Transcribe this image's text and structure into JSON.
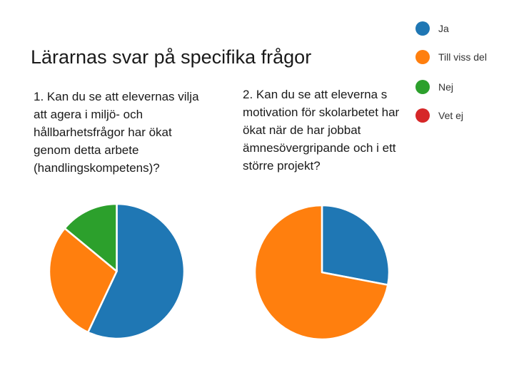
{
  "slide": {
    "title": "Lärarnas svar på specifika frågor",
    "question_1": "1. Kan du se att elevernas vilja att agera i miljö- och hållbarhetsfrågor har ökat genom detta arbete (handlingskompetens)?",
    "question_2": "2. Kan du se att eleverna s motivation för skolarbetet har ökat när de har jobbat ämnesövergripande och i ett större projekt?"
  },
  "legend": {
    "items": [
      {
        "label": "Ja",
        "color": "#1f77b4"
      },
      {
        "label": "Till viss del",
        "color": "#ff7f0e"
      },
      {
        "label": "Nej",
        "color": "#2ca02c"
      },
      {
        "label": "Vet ej",
        "color": "#d62728"
      }
    ]
  },
  "chart_data": [
    {
      "type": "pie",
      "categories": [
        "Ja",
        "Till viss del",
        "Nej",
        "Vet ej"
      ],
      "values": [
        57,
        29,
        14,
        0
      ],
      "colors": [
        "#1f77b4",
        "#ff7f0e",
        "#2ca02c",
        "#d62728"
      ],
      "title": ""
    },
    {
      "type": "pie",
      "categories": [
        "Ja",
        "Till viss del",
        "Nej",
        "Vet ej"
      ],
      "values": [
        28,
        72,
        0,
        0
      ],
      "colors": [
        "#1f77b4",
        "#ff7f0e",
        "#2ca02c",
        "#d62728"
      ],
      "title": ""
    }
  ]
}
